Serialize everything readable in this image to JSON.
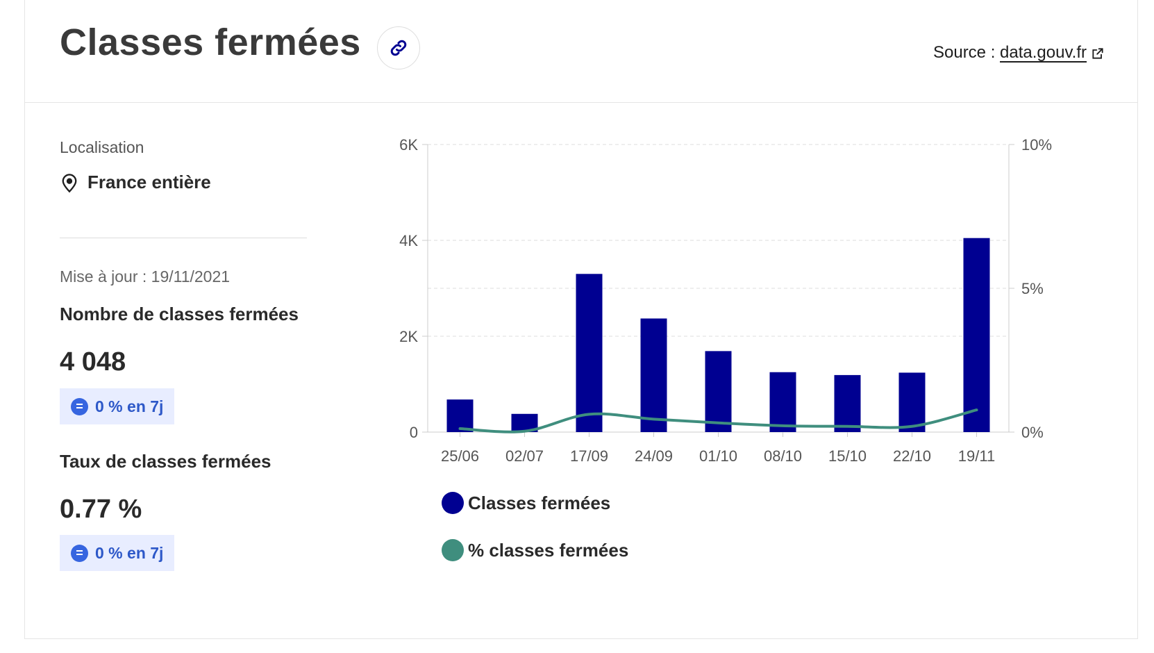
{
  "header": {
    "title": "Classes fermées",
    "source_prefix": "Source : ",
    "source_link": "data.gouv.fr"
  },
  "left_panel": {
    "location_label": "Localisation",
    "location_value": "France entière",
    "update_text": "Mise à jour : 19/11/2021",
    "kpis": [
      {
        "title": "Nombre de classes fermées",
        "value": "4 048",
        "badge": "0 % en 7j"
      },
      {
        "title": "Taux de classes fermées",
        "value": "0.77 %",
        "badge": "0 % en 7j"
      }
    ]
  },
  "colors": {
    "bar": "#000091",
    "line": "#3f8e7e",
    "badge_bg": "#e8edff",
    "badge_text": "#2d58c8"
  },
  "chart_data": {
    "type": "bar",
    "categories": [
      "25/06",
      "02/07",
      "17/09",
      "24/09",
      "01/10",
      "08/10",
      "15/10",
      "22/10",
      "19/11"
    ],
    "series": [
      {
        "name": "Classes fermées",
        "type": "bar",
        "axis": "left",
        "values": [
          680,
          380,
          3300,
          2370,
          1690,
          1250,
          1190,
          1240,
          4048
        ]
      },
      {
        "name": "% classes fermées",
        "type": "line",
        "axis": "right",
        "values": [
          0.12,
          0.03,
          0.62,
          0.45,
          0.32,
          0.22,
          0.2,
          0.2,
          0.77
        ]
      }
    ],
    "y_left": {
      "min": 0,
      "max": 6000,
      "ticks": [
        0,
        2000,
        4000,
        6000
      ],
      "tick_labels": [
        "0",
        "2K",
        "4K",
        "6K"
      ]
    },
    "y_right": {
      "min": 0,
      "max": 10,
      "ticks": [
        0,
        5,
        10
      ],
      "tick_labels": [
        "0%",
        "5%",
        "10%"
      ]
    },
    "grid": true,
    "legend_position": "bottom-left",
    "legend": [
      "Classes fermées",
      "% classes fermées"
    ]
  }
}
